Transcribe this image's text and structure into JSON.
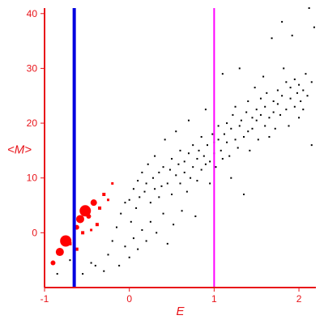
{
  "chart_data": {
    "type": "scatter",
    "xlabel": "E",
    "ylabel": "<M>",
    "xlim": [
      -1.0,
      2.2
    ],
    "ylim": [
      -10,
      41
    ],
    "x_ticks": [
      -1,
      0,
      1,
      2
    ],
    "y_ticks": [
      0,
      10,
      20,
      30,
      40
    ],
    "grid": false,
    "colors": {
      "axes": "#e8141a",
      "background_points": "#000000",
      "highlight_points": "#ff0000",
      "vertical_line_left": "#0000e0",
      "vertical_line_right": "#ff00ff"
    },
    "vertical_lines": [
      {
        "x": -0.65,
        "color": "#0000e0"
      },
      {
        "x": 1.0,
        "color": "#ff00ff"
      }
    ],
    "series": [
      {
        "values": [
          [
            -0.25,
            -4.0
          ],
          [
            -0.2,
            -1.5
          ],
          [
            -0.15,
            1.0
          ],
          [
            -0.12,
            -6.0
          ],
          [
            -0.1,
            3.5
          ],
          [
            -0.05,
            5.5
          ],
          [
            -0.05,
            -2.5
          ],
          [
            0.0,
            6.0
          ],
          [
            0.0,
            -4.5
          ],
          [
            0.02,
            2.0
          ],
          [
            0.05,
            8.0
          ],
          [
            0.05,
            -1.0
          ],
          [
            0.08,
            4.5
          ],
          [
            0.1,
            9.5
          ],
          [
            0.1,
            -3.0
          ],
          [
            0.12,
            6.5
          ],
          [
            0.15,
            11.0
          ],
          [
            0.15,
            0.5
          ],
          [
            0.18,
            7.5
          ],
          [
            0.2,
            9.0
          ],
          [
            0.2,
            -1.5
          ],
          [
            0.22,
            12.5
          ],
          [
            0.25,
            5.5
          ],
          [
            0.25,
            2.0
          ],
          [
            0.28,
            10.0
          ],
          [
            0.3,
            8.0
          ],
          [
            0.3,
            14.0
          ],
          [
            0.32,
            0.0
          ],
          [
            0.35,
            11.0
          ],
          [
            0.35,
            6.5
          ],
          [
            0.38,
            8.5
          ],
          [
            0.4,
            12.0
          ],
          [
            0.4,
            3.5
          ],
          [
            0.42,
            17.0
          ],
          [
            0.45,
            9.0
          ],
          [
            0.45,
            -2.0
          ],
          [
            0.48,
            11.5
          ],
          [
            0.5,
            13.5
          ],
          [
            0.5,
            7.0
          ],
          [
            0.52,
            1.5
          ],
          [
            0.55,
            10.5
          ],
          [
            0.55,
            18.5
          ],
          [
            0.58,
            12.5
          ],
          [
            0.6,
            9.0
          ],
          [
            0.6,
            15.0
          ],
          [
            0.62,
            4.0
          ],
          [
            0.65,
            11.0
          ],
          [
            0.65,
            13.0
          ],
          [
            0.68,
            7.5
          ],
          [
            0.7,
            20.5
          ],
          [
            0.7,
            14.5
          ],
          [
            0.72,
            10.0
          ],
          [
            0.75,
            12.0
          ],
          [
            0.75,
            16.0
          ],
          [
            0.78,
            3.0
          ],
          [
            0.8,
            13.5
          ],
          [
            0.8,
            9.5
          ],
          [
            0.82,
            15.0
          ],
          [
            0.85,
            17.5
          ],
          [
            0.85,
            11.5
          ],
          [
            0.88,
            14.0
          ],
          [
            0.9,
            22.5
          ],
          [
            0.9,
            12.5
          ],
          [
            0.92,
            16.0
          ],
          [
            0.95,
            13.0
          ],
          [
            0.95,
            9.0
          ],
          [
            0.98,
            18.0
          ],
          [
            1.0,
            14.5
          ],
          [
            1.0,
            16.5
          ],
          [
            1.02,
            12.0
          ],
          [
            1.05,
            17.0
          ],
          [
            1.05,
            19.5
          ],
          [
            1.08,
            15.0
          ],
          [
            1.1,
            29.0
          ],
          [
            1.1,
            13.5
          ],
          [
            1.12,
            18.0
          ],
          [
            1.15,
            16.5
          ],
          [
            1.15,
            20.0
          ],
          [
            1.18,
            14.0
          ],
          [
            1.2,
            19.0
          ],
          [
            1.2,
            10.0
          ],
          [
            1.22,
            21.5
          ],
          [
            1.25,
            17.0
          ],
          [
            1.25,
            23.0
          ],
          [
            1.28,
            15.5
          ],
          [
            1.3,
            19.5
          ],
          [
            1.3,
            30.0
          ],
          [
            1.32,
            20.5
          ],
          [
            1.35,
            17.5
          ],
          [
            1.35,
            7.0
          ],
          [
            1.38,
            22.0
          ],
          [
            1.4,
            18.5
          ],
          [
            1.4,
            24.0
          ],
          [
            1.42,
            15.0
          ],
          [
            1.45,
            21.0
          ],
          [
            1.45,
            19.0
          ],
          [
            1.48,
            26.5
          ],
          [
            1.5,
            20.5
          ],
          [
            1.5,
            22.5
          ],
          [
            1.52,
            17.0
          ],
          [
            1.55,
            24.5
          ],
          [
            1.55,
            21.5
          ],
          [
            1.58,
            28.5
          ],
          [
            1.6,
            19.5
          ],
          [
            1.6,
            23.0
          ],
          [
            1.62,
            25.5
          ],
          [
            1.65,
            17.5
          ],
          [
            1.65,
            21.0
          ],
          [
            1.68,
            35.5
          ],
          [
            1.7,
            24.0
          ],
          [
            1.7,
            22.0
          ],
          [
            1.72,
            19.0
          ],
          [
            1.75,
            26.0
          ],
          [
            1.75,
            23.5
          ],
          [
            1.78,
            21.5
          ],
          [
            1.8,
            38.5
          ],
          [
            1.8,
            25.0
          ],
          [
            1.82,
            30.0
          ],
          [
            1.85,
            22.5
          ],
          [
            1.85,
            27.5
          ],
          [
            1.88,
            19.5
          ],
          [
            1.9,
            24.5
          ],
          [
            1.9,
            26.5
          ],
          [
            1.92,
            36.0
          ],
          [
            1.95,
            23.0
          ],
          [
            1.95,
            28.0
          ],
          [
            1.98,
            25.5
          ],
          [
            2.0,
            21.0
          ],
          [
            2.0,
            27.0
          ],
          [
            2.02,
            24.0
          ],
          [
            2.05,
            26.0
          ],
          [
            2.05,
            22.5
          ],
          [
            2.08,
            29.0
          ],
          [
            2.1,
            25.0
          ],
          [
            2.12,
            41.0
          ],
          [
            2.15,
            27.5
          ],
          [
            2.15,
            16.0
          ],
          [
            2.18,
            37.5
          ],
          [
            -0.3,
            -7.0
          ],
          [
            -0.4,
            -6.0
          ],
          [
            -0.55,
            -7.5
          ],
          [
            -0.7,
            -5.0
          ],
          [
            -0.85,
            -7.5
          ],
          [
            -0.45,
            -5.5
          ]
        ]
      },
      {
        "values": [
          [
            -0.9,
            -5.5,
            3.0
          ],
          [
            -0.82,
            -3.5,
            5.0
          ],
          [
            -0.75,
            -1.5,
            7.0
          ],
          [
            -0.7,
            -2.0,
            2.0
          ],
          [
            -0.62,
            1.0,
            3.0
          ],
          [
            -0.58,
            2.5,
            5.0
          ],
          [
            -0.52,
            4.0,
            7.0
          ],
          [
            -0.48,
            3.0,
            3.0
          ],
          [
            -0.42,
            5.5,
            4.0
          ],
          [
            -0.38,
            1.5,
            2.0
          ],
          [
            -0.35,
            4.5,
            2.0
          ],
          [
            -0.3,
            7.0,
            2.0
          ],
          [
            -0.25,
            6.0,
            1.5
          ],
          [
            -0.55,
            0.0,
            2.0
          ],
          [
            -0.45,
            0.5,
            1.5
          ],
          [
            -0.62,
            -3.0,
            2.0
          ],
          [
            -0.2,
            9.0,
            1.5
          ]
        ]
      }
    ]
  }
}
